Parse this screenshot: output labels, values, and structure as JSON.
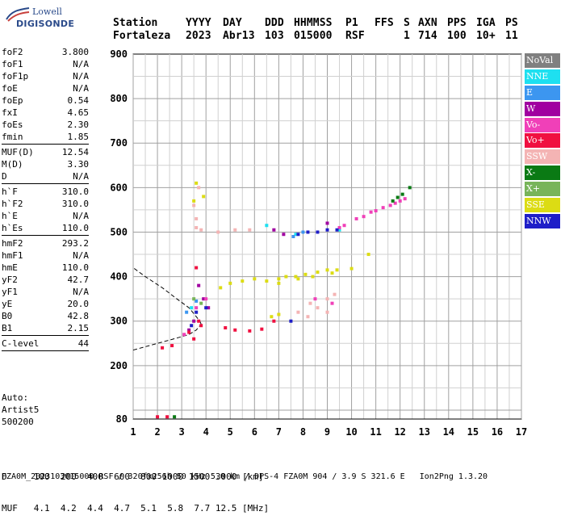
{
  "logo": {
    "brand": "Lowell",
    "product": "DIGISONDE"
  },
  "header": {
    "labels": [
      "Station",
      "YYYY",
      "DAY",
      "DDD",
      "HHMMSS",
      "P1",
      "FFS",
      "S",
      "AXN",
      "PPS",
      "IGA",
      "PS"
    ],
    "values": [
      "Fortaleza",
      "2023",
      "Abr13",
      "103",
      "015000",
      "RSF",
      "",
      "1",
      "714",
      "100",
      "10+",
      "11"
    ]
  },
  "params": [
    {
      "name": "foF2",
      "value": "3.800"
    },
    {
      "name": "foF1",
      "value": "N/A"
    },
    {
      "name": "foF1p",
      "value": "N/A"
    },
    {
      "name": "foE",
      "value": "N/A"
    },
    {
      "name": "foEp",
      "value": "0.54"
    },
    {
      "name": "fxI",
      "value": "4.65"
    },
    {
      "name": "foEs",
      "value": "2.30"
    },
    {
      "name": "fmin",
      "value": "1.85",
      "sep": true
    },
    {
      "name": "MUF(D)",
      "value": "12.54"
    },
    {
      "name": "M(D)",
      "value": "3.30"
    },
    {
      "name": "D",
      "value": "N/A",
      "sep": true
    },
    {
      "name": "h`F",
      "value": "310.0"
    },
    {
      "name": "h`F2",
      "value": "310.0"
    },
    {
      "name": "h`E",
      "value": "N/A"
    },
    {
      "name": "h`Es",
      "value": "110.0",
      "sep": true
    },
    {
      "name": "hmF2",
      "value": "293.2"
    },
    {
      "name": "hmF1",
      "value": "N/A"
    },
    {
      "name": "hmE",
      "value": "110.0"
    },
    {
      "name": "yF2",
      "value": "42.7"
    },
    {
      "name": "yF1",
      "value": "N/A"
    },
    {
      "name": "yE",
      "value": "20.0"
    },
    {
      "name": "B0",
      "value": "42.8"
    },
    {
      "name": "B1",
      "value": "2.15",
      "sep": true
    },
    {
      "name": "C-level",
      "value": "44",
      "sep": true
    }
  ],
  "auto": {
    "line1": "Auto:",
    "line2": "Artist5",
    "line3": "500200"
  },
  "legend": [
    {
      "label": "NoVal",
      "color": "#808080"
    },
    {
      "label": "NNE",
      "color": "#1ee0f0"
    },
    {
      "label": "E",
      "color": "#3c96f0"
    },
    {
      "label": "W",
      "color": "#a000a0"
    },
    {
      "label": "Vo-",
      "color": "#f040b8"
    },
    {
      "label": "Vo+",
      "color": "#f01040"
    },
    {
      "label": "SSW",
      "color": "#f4b4b4"
    },
    {
      "label": "X-",
      "color": "#0a7a14"
    },
    {
      "label": "X+",
      "color": "#78b45a"
    },
    {
      "label": "SSE",
      "color": "#dcdc14"
    },
    {
      "label": "NNW",
      "color": "#1e1ec8"
    }
  ],
  "footer": {
    "line1": "D     100  200  400  600  800 1000 1500 3000 [km]",
    "line2": "MUF   4.1  4.2  4.4  4.7  5.1  5.8  7.7 12.5 [MHz]",
    "line3": "FZA0M_2023103015000.RSF / 320fx256h 50 kHz 5.0 km / DPS-4 FZA0M 904 / 3.9 S 321.6 E   Ion2Png 1.3.20"
  },
  "chart_data": {
    "type": "scatter",
    "xlim": [
      1,
      17
    ],
    "ylim": [
      80,
      900
    ],
    "x_ticks": [
      1,
      2,
      3,
      4,
      5,
      6,
      7,
      8,
      9,
      10,
      11,
      12,
      13,
      14,
      15,
      16,
      17
    ],
    "y_ticks": [
      80,
      200,
      300,
      400,
      500,
      600,
      700,
      800,
      900
    ],
    "grid": true,
    "legend_position": "right",
    "series": [
      {
        "name": "NNE",
        "color": "#1ee0f0",
        "points": [
          [
            7.7,
            495
          ],
          [
            3.4,
            330
          ],
          [
            6.5,
            515
          ],
          [
            9.5,
            505
          ]
        ]
      },
      {
        "name": "E",
        "color": "#3c96f0",
        "points": [
          [
            3.6,
            345
          ],
          [
            7.6,
            490
          ],
          [
            3.2,
            320
          ],
          [
            8.0,
            500
          ]
        ]
      },
      {
        "name": "W",
        "color": "#a000a0",
        "points": [
          [
            3.7,
            380
          ],
          [
            3.9,
            350
          ],
          [
            3.5,
            300
          ],
          [
            6.8,
            505
          ],
          [
            7.2,
            495
          ],
          [
            4.1,
            330
          ],
          [
            3.3,
            280
          ],
          [
            9.0,
            520
          ]
        ]
      },
      {
        "name": "Vo-",
        "color": "#f040b8",
        "points": [
          [
            9.7,
            515
          ],
          [
            10.2,
            530
          ],
          [
            10.8,
            545
          ],
          [
            11.3,
            555
          ],
          [
            11.8,
            565
          ],
          [
            12.2,
            575
          ],
          [
            3.6,
            330
          ],
          [
            4.0,
            350
          ],
          [
            8.5,
            350
          ],
          [
            9.2,
            340
          ],
          [
            3.1,
            270
          ],
          [
            9.5,
            510
          ],
          [
            10.5,
            535
          ],
          [
            11.0,
            548
          ],
          [
            11.6,
            560
          ],
          [
            12.0,
            570
          ]
        ]
      },
      {
        "name": "Vo+",
        "color": "#f01040",
        "points": [
          [
            3.7,
            300
          ],
          [
            3.3,
            275
          ],
          [
            2.2,
            240
          ],
          [
            3.8,
            290
          ],
          [
            5.2,
            280
          ],
          [
            5.8,
            278
          ],
          [
            6.3,
            282
          ],
          [
            3.5,
            260
          ],
          [
            2.6,
            245
          ],
          [
            4.8,
            285
          ],
          [
            6.8,
            300
          ],
          [
            2.4,
            85
          ],
          [
            2.0,
            85
          ],
          [
            3.6,
            420
          ]
        ]
      },
      {
        "name": "SSW",
        "color": "#f4b4b4",
        "points": [
          [
            3.6,
            510
          ],
          [
            3.8,
            505
          ],
          [
            4.5,
            500
          ],
          [
            5.2,
            505
          ],
          [
            5.8,
            505
          ],
          [
            8.2,
            310
          ],
          [
            8.6,
            330
          ],
          [
            9.0,
            350
          ],
          [
            9.3,
            360
          ],
          [
            9.0,
            320
          ],
          [
            8.3,
            340
          ],
          [
            7.8,
            320
          ],
          [
            3.5,
            560
          ],
          [
            3.7,
            600
          ],
          [
            3.6,
            530
          ]
        ]
      },
      {
        "name": "X-",
        "color": "#0a7a14",
        "points": [
          [
            11.7,
            570
          ],
          [
            12.1,
            585
          ],
          [
            12.4,
            600
          ],
          [
            11.9,
            578
          ],
          [
            2.7,
            85
          ]
        ]
      },
      {
        "name": "X+",
        "color": "#78b45a",
        "points": [
          [
            3.5,
            350
          ],
          [
            3.8,
            340
          ]
        ]
      },
      {
        "name": "SSE",
        "color": "#dcdc14",
        "points": [
          [
            3.6,
            610
          ],
          [
            3.5,
            570
          ],
          [
            3.9,
            580
          ],
          [
            6.0,
            395
          ],
          [
            6.5,
            390
          ],
          [
            7.0,
            395
          ],
          [
            7.3,
            400
          ],
          [
            7.7,
            400
          ],
          [
            8.1,
            405
          ],
          [
            8.6,
            410
          ],
          [
            9.0,
            415
          ],
          [
            9.4,
            415
          ],
          [
            10.0,
            418
          ],
          [
            10.7,
            450
          ],
          [
            5.5,
            390
          ],
          [
            5.0,
            385
          ],
          [
            4.6,
            375
          ],
          [
            7.0,
            385
          ],
          [
            7.8,
            395
          ],
          [
            8.4,
            400
          ],
          [
            9.2,
            408
          ],
          [
            6.7,
            310
          ],
          [
            7.0,
            315
          ]
        ]
      },
      {
        "name": "NNW",
        "color": "#1e1ec8",
        "points": [
          [
            7.8,
            495
          ],
          [
            8.2,
            500
          ],
          [
            8.6,
            500
          ],
          [
            9.0,
            505
          ],
          [
            9.4,
            505
          ],
          [
            3.6,
            320
          ],
          [
            4.0,
            330
          ],
          [
            3.4,
            290
          ],
          [
            7.5,
            300
          ]
        ]
      }
    ],
    "profile_line": {
      "x": [
        3.8,
        3.75,
        3.6,
        3.3,
        2.8,
        2.2,
        1.5,
        1.0
      ],
      "y": [
        293.2,
        300,
        310,
        330,
        350,
        375,
        400,
        420
      ]
    },
    "trace_line": {
      "x": [
        1.0,
        2.0,
        2.8,
        3.3,
        3.6,
        3.8
      ],
      "y": [
        235,
        250,
        262,
        270,
        280,
        293
      ]
    }
  }
}
